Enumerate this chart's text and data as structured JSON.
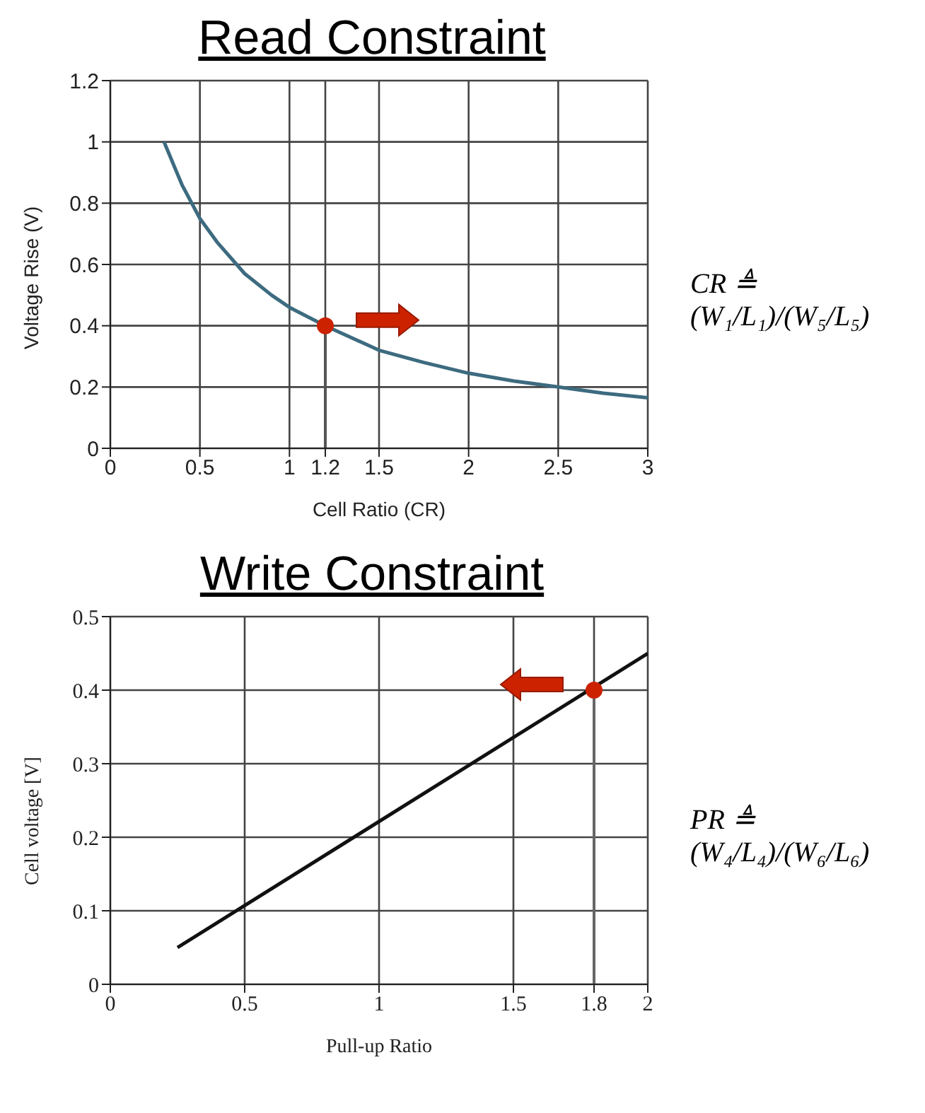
{
  "chart_data": [
    {
      "type": "line",
      "title": "Read Constraint",
      "xlabel": "Cell Ratio (CR)",
      "ylabel": "Voltage Rise (V)",
      "xlim": [
        0,
        3
      ],
      "ylim": [
        0,
        1.2
      ],
      "xticks": [
        0,
        0.5,
        1,
        1.2,
        1.5,
        2,
        2.5,
        3
      ],
      "yticks": [
        0,
        0.2,
        0.4,
        0.6,
        0.8,
        1,
        1.2
      ],
      "grid": true,
      "line_style": "solid",
      "annotations": [
        "CR ≜ (W₁/L₁)/(W₅/L₅)"
      ],
      "series": [
        {
          "marker": "none",
          "color": "#3d6b80",
          "x": [
            0.3,
            0.4,
            0.5,
            0.6,
            0.75,
            0.9,
            1,
            1.2,
            1.5,
            1.75,
            2,
            2.25,
            2.5,
            2.75,
            3
          ],
          "values": [
            1.0,
            0.86,
            0.75,
            0.67,
            0.57,
            0.5,
            0.46,
            0.4,
            0.32,
            0.28,
            0.245,
            0.22,
            0.2,
            0.18,
            0.165
          ]
        },
        {
          "type": "line",
          "marker": "none",
          "color": "#555555",
          "x": [
            1.2,
            1.2
          ],
          "values": [
            0,
            0.4
          ]
        },
        {
          "type": "scatter",
          "marker": "circle",
          "color": "#cc2200",
          "x": [
            1.2
          ],
          "values": [
            0.4
          ]
        }
      ]
    },
    {
      "type": "line",
      "title": "Write Constraint",
      "xlabel": "Pull-up Ratio",
      "ylabel": "Cell voltage [V]",
      "xlim": [
        0,
        2
      ],
      "ylim": [
        0,
        0.5
      ],
      "xticks": [
        0,
        0.5,
        1,
        1.5,
        1.8,
        2
      ],
      "yticks": [
        0,
        0.1,
        0.2,
        0.3,
        0.4,
        0.5
      ],
      "grid": true,
      "line_style": "solid",
      "annotations": [
        "PR ≜ (W₄/L₄)/(W₆/L₆)"
      ],
      "series": [
        {
          "marker": "none",
          "color": "#111111",
          "x": [
            0.25,
            2
          ],
          "values": [
            0.05,
            0.45
          ]
        },
        {
          "type": "line",
          "marker": "none",
          "color": "#666666",
          "x": [
            1.8,
            1.8
          ],
          "values": [
            0,
            0.4
          ]
        },
        {
          "type": "scatter",
          "marker": "circle",
          "color": "#cc2200",
          "x": [
            1.8
          ],
          "values": [
            0.4
          ]
        }
      ]
    }
  ]
}
